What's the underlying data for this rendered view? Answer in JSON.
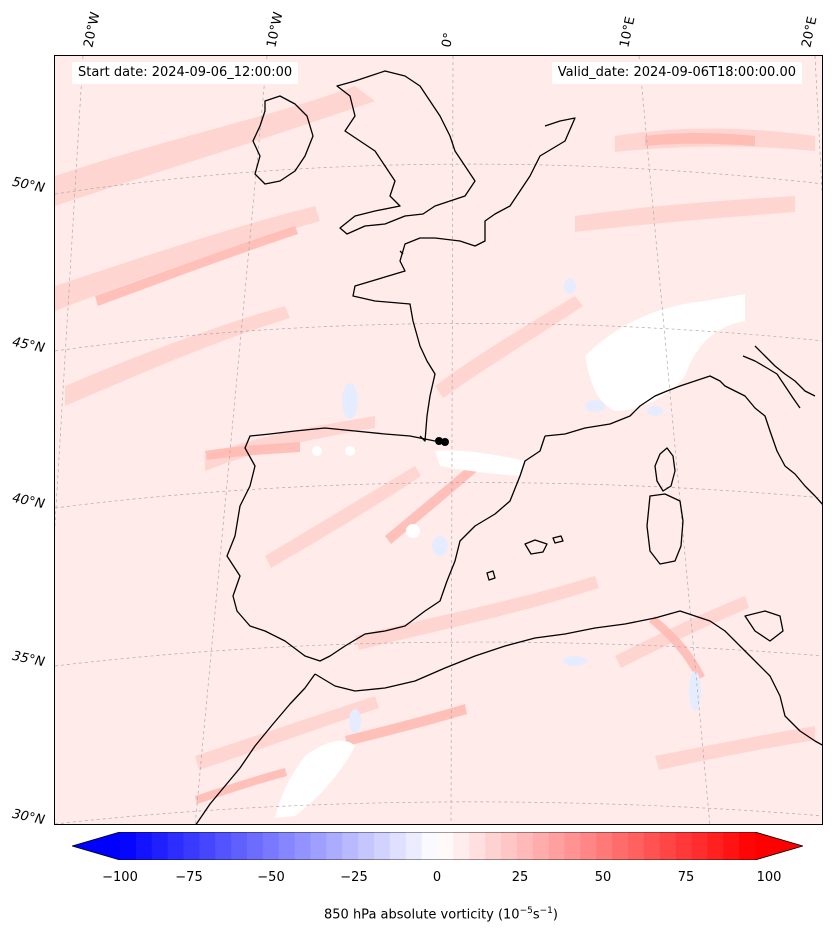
{
  "map": {
    "start_label": "Start date: 2024-09-06_12:00:00",
    "valid_label": "Valid_date: 2024-09-06T18:00:00.00",
    "lon_labels": [
      "20°W",
      "10°W",
      "0°",
      "10°E",
      "20°E"
    ],
    "lat_labels": [
      "50°N",
      "45°N",
      "40°N",
      "35°N",
      "30°N"
    ],
    "region": "Western Europe, Iberian Peninsula, Western Mediterranean, North Africa",
    "field": "850 hPa absolute vorticity",
    "colors": {
      "coast": "#000000",
      "grid": "#aaaaaa",
      "background": "#fff5f4"
    }
  },
  "colorbar": {
    "ticks": [
      "−100",
      "−75",
      "−50",
      "−25",
      "0",
      "25",
      "50",
      "75",
      "100"
    ],
    "label_main": "850 hPa absolute vorticity (10",
    "label_exp1": "−5",
    "label_mid": "s",
    "label_exp2": "−1",
    "label_end": ")",
    "min": -100,
    "max": 100,
    "extend": "both",
    "cmap": "bwr",
    "colors": {
      "negative": "#0000ff",
      "zero": "#ffffff",
      "positive": "#ff0000"
    }
  }
}
